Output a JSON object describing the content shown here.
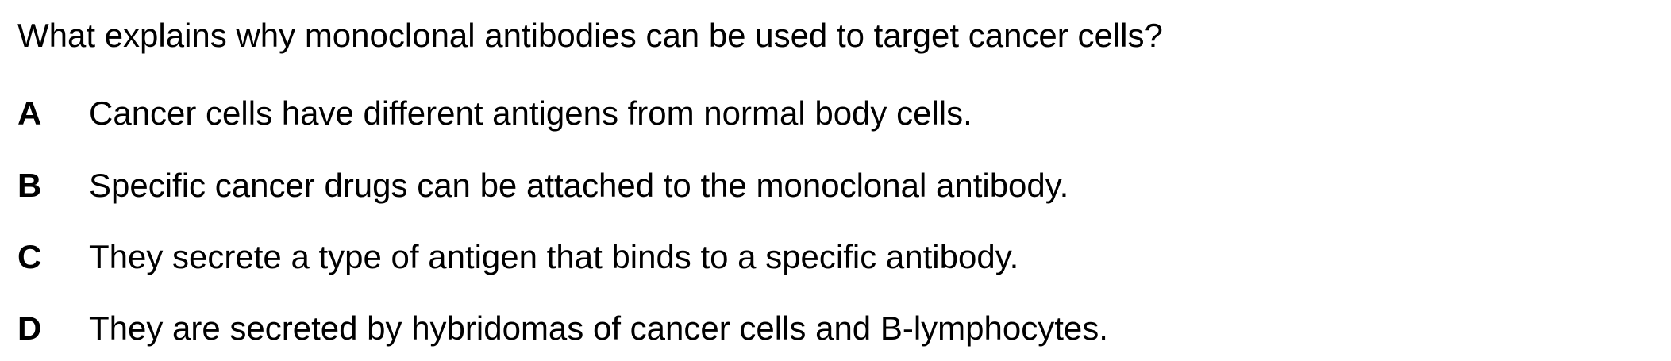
{
  "question": {
    "text": "What explains why monoclonal antibodies can be used to target cancer cells?"
  },
  "options": [
    {
      "letter": "A",
      "text": "Cancer cells have different antigens from normal body cells."
    },
    {
      "letter": "B",
      "text": "Specific cancer drugs can be attached to the monoclonal antibody."
    },
    {
      "letter": "C",
      "text": "They secrete a type of antigen that binds to a specific antibody."
    },
    {
      "letter": "D",
      "text": "They are secreted by hybridomas of cancer cells and B-lymphocytes."
    }
  ]
}
